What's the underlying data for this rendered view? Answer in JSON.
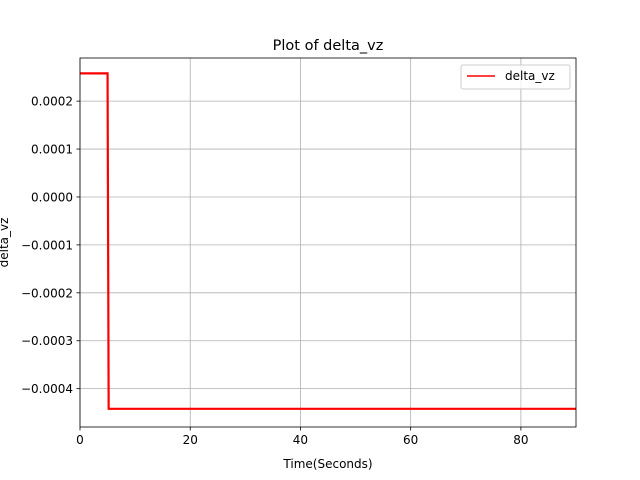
{
  "chart_data": {
    "type": "line",
    "title": "Plot of delta_vz",
    "xlabel": "Time(Seconds)",
    "ylabel": "delta_vz",
    "xlim": [
      0,
      90
    ],
    "ylim": [
      -0.00048,
      0.00029
    ],
    "xticks": [
      0,
      20,
      40,
      60,
      80
    ],
    "xtick_labels": [
      "0",
      "20",
      "40",
      "60",
      "80"
    ],
    "yticks": [
      0.0002,
      0.0001,
      0.0,
      -0.0001,
      -0.0002,
      -0.0003,
      -0.0004
    ],
    "ytick_labels": [
      "0.0002",
      "0.0001",
      "0.0000",
      "−0.0001",
      "−0.0002",
      "−0.0003",
      "−0.0004"
    ],
    "grid": true,
    "legend": "top-right",
    "series": [
      {
        "name": "delta_vz",
        "color": "#ff0000",
        "x": [
          0,
          5.0,
          5.2,
          90
        ],
        "y": [
          0.000258,
          0.000258,
          -0.000442,
          -0.000442
        ]
      }
    ]
  }
}
